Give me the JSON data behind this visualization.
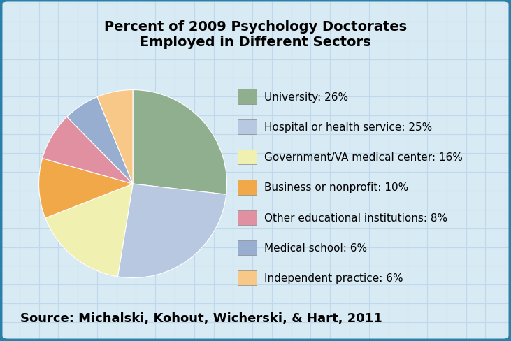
{
  "title": "Percent of 2009 Psychology Doctorates\nEmployed in Different Sectors",
  "source_text": "Source: Michalski, Kohout, Wicherski, & Hart, 2011",
  "labels": [
    "University: 26%",
    "Hospital or health service: 25%",
    "Government/VA medical center: 16%",
    "Business or nonprofit: 10%",
    "Other educational institutions: 8%",
    "Medical school: 6%",
    "Independent practice: 6%"
  ],
  "values": [
    26,
    25,
    16,
    10,
    8,
    6,
    6
  ],
  "colors": [
    "#8faf8f",
    "#b8c8e0",
    "#f0f0b0",
    "#f0a848",
    "#e090a0",
    "#98aed0",
    "#f8c888"
  ],
  "background_color": "#d8eaf4",
  "border_color": "#2980a8",
  "grid_color": "#c0d8ec",
  "title_fontsize": 14,
  "legend_fontsize": 11,
  "source_fontsize": 13
}
